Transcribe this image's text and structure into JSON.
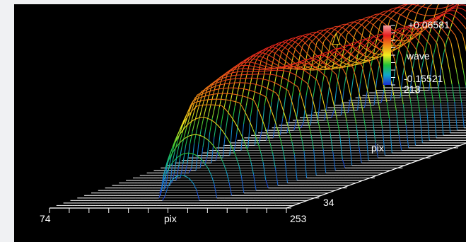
{
  "chart_data": {
    "type": "surface3d",
    "description_style": "stacked wireframe profile lines of a ring-shaped wavefront",
    "colormap": {
      "colors": [
        "#1a2fd0",
        "#11a6c9",
        "#1fc23a",
        "#f1ee1e",
        "#f08a14",
        "#e51d1d",
        "#f2a0a0"
      ],
      "max_label": "+0.06581",
      "min_label": "-0.15521",
      "label": "wave"
    },
    "x_axis": {
      "min": "74",
      "max": "253",
      "label": "pix"
    },
    "y_axis": {
      "min": "34",
      "max": "213",
      "label": "pix"
    },
    "z_range": [
      -0.15521,
      0.06581
    ],
    "grid": false
  }
}
